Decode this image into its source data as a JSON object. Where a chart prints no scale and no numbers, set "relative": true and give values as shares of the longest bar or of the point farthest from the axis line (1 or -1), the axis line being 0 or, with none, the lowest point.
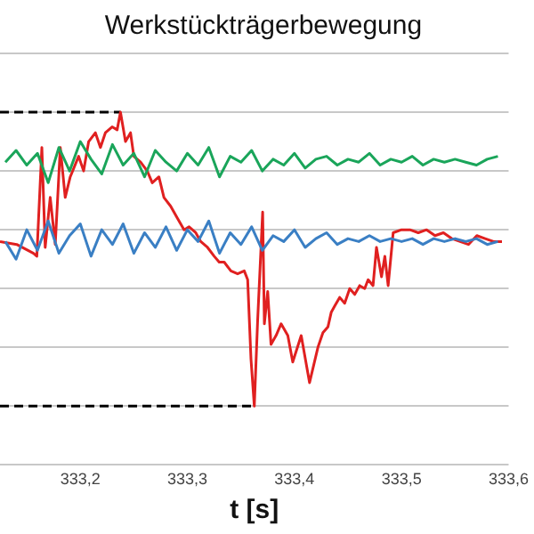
{
  "chart_data": {
    "type": "line",
    "title": "Werkstückträgerbewegung",
    "xlabel": "t [s]",
    "relative": true,
    "grid": "y",
    "legend": false,
    "marker": "none",
    "xlim": [
      333.125,
      333.6
    ],
    "xticks": [
      {
        "value": 333.2,
        "label": "333,2"
      },
      {
        "value": 333.3,
        "label": "333,3"
      },
      {
        "value": 333.4,
        "label": "333,4"
      },
      {
        "value": 333.5,
        "label": "333,5"
      },
      {
        "value": 333.6,
        "label": "333,6"
      }
    ],
    "series": [
      {
        "color": "#1aa55a",
        "x": [
          333.13,
          333.14,
          333.15,
          333.16,
          333.17,
          333.18,
          333.19,
          333.2,
          333.21,
          333.22,
          333.23,
          333.24,
          333.25,
          333.26,
          333.27,
          333.28,
          333.29,
          333.3,
          333.31,
          333.32,
          333.33,
          333.34,
          333.35,
          333.36,
          333.37,
          333.38,
          333.39,
          333.4,
          333.41,
          333.42,
          333.43,
          333.44,
          333.45,
          333.46,
          333.47,
          333.48,
          333.49,
          333.5,
          333.51,
          333.52,
          333.53,
          333.54,
          333.55,
          333.56,
          333.57,
          333.58,
          333.59
        ],
        "values": [
          0.83,
          0.87,
          0.82,
          0.86,
          0.76,
          0.88,
          0.8,
          0.9,
          0.84,
          0.79,
          0.89,
          0.82,
          0.86,
          0.78,
          0.87,
          0.83,
          0.8,
          0.86,
          0.82,
          0.88,
          0.78,
          0.85,
          0.83,
          0.87,
          0.8,
          0.84,
          0.82,
          0.86,
          0.81,
          0.84,
          0.85,
          0.82,
          0.84,
          0.83,
          0.86,
          0.82,
          0.84,
          0.83,
          0.85,
          0.82,
          0.84,
          0.83,
          0.84,
          0.83,
          0.82,
          0.84,
          0.85
        ]
      },
      {
        "color": "#3a7fc4",
        "x": [
          333.13,
          333.14,
          333.15,
          333.16,
          333.17,
          333.18,
          333.19,
          333.2,
          333.21,
          333.22,
          333.23,
          333.24,
          333.25,
          333.26,
          333.27,
          333.28,
          333.29,
          333.3,
          333.31,
          333.32,
          333.33,
          333.34,
          333.35,
          333.36,
          333.37,
          333.38,
          333.39,
          333.4,
          333.41,
          333.42,
          333.43,
          333.44,
          333.45,
          333.46,
          333.47,
          333.48,
          333.49,
          333.5,
          333.51,
          333.52,
          333.53,
          333.54,
          333.55,
          333.56,
          333.57,
          333.58,
          333.59
        ],
        "values": [
          0.56,
          0.5,
          0.6,
          0.53,
          0.63,
          0.52,
          0.58,
          0.62,
          0.51,
          0.6,
          0.55,
          0.62,
          0.52,
          0.59,
          0.54,
          0.61,
          0.53,
          0.6,
          0.56,
          0.63,
          0.52,
          0.59,
          0.55,
          0.61,
          0.53,
          0.58,
          0.56,
          0.6,
          0.54,
          0.57,
          0.59,
          0.55,
          0.57,
          0.56,
          0.58,
          0.56,
          0.57,
          0.56,
          0.57,
          0.55,
          0.57,
          0.56,
          0.57,
          0.56,
          0.57,
          0.55,
          0.56
        ]
      },
      {
        "color": "#e02020",
        "x": [
          333.125,
          333.1406,
          333.1563,
          333.1594,
          333.1641,
          333.1672,
          333.1719,
          333.1766,
          333.1813,
          333.1859,
          333.1906,
          333.1984,
          333.2031,
          333.2078,
          333.2141,
          333.2188,
          333.2234,
          333.2297,
          333.2344,
          333.2375,
          333.2422,
          333.2469,
          333.25,
          333.2563,
          333.2625,
          333.2672,
          333.2734,
          333.2781,
          333.2844,
          333.2906,
          333.2969,
          333.3016,
          333.3078,
          333.3125,
          333.3188,
          333.325,
          333.3297,
          333.3344,
          333.3406,
          333.3469,
          333.3531,
          333.3563,
          333.3594,
          333.3625,
          333.3656,
          333.3703,
          333.3719,
          333.375,
          333.3781,
          333.3828,
          333.3875,
          333.3938,
          333.3984,
          333.4063,
          333.4141,
          333.4219,
          333.4266,
          333.4313,
          333.4344,
          333.4375,
          333.4422,
          333.4469,
          333.4516,
          333.4563,
          333.4609,
          333.4656,
          333.4688,
          333.4734,
          333.4766,
          333.4813,
          333.4844,
          333.4875,
          333.4922,
          333.5,
          333.5078,
          333.5156,
          333.5234,
          333.5313,
          333.5391,
          333.5469,
          333.5547,
          333.5625,
          333.5703,
          333.5781,
          333.5859,
          333.5938
        ],
        "values": [
          0.56,
          0.55,
          0.52,
          0.51,
          0.88,
          0.54,
          0.71,
          0.55,
          0.88,
          0.71,
          0.78,
          0.85,
          0.8,
          0.9,
          0.93,
          0.88,
          0.93,
          0.95,
          0.94,
          1,
          0.9,
          0.93,
          0.85,
          0.83,
          0.8,
          0.76,
          0.78,
          0.71,
          0.68,
          0.64,
          0.6,
          0.61,
          0.59,
          0.56,
          0.54,
          0.51,
          0.49,
          0.49,
          0.46,
          0.45,
          0.46,
          0.43,
          0.16,
          0,
          0.29,
          0.66,
          0.28,
          0.39,
          0.21,
          0.24,
          0.28,
          0.24,
          0.15,
          0.24,
          0.08,
          0.2,
          0.25,
          0.27,
          0.32,
          0.34,
          0.37,
          0.35,
          0.4,
          0.38,
          0.41,
          0.4,
          0.43,
          0.41,
          0.54,
          0.44,
          0.51,
          0.41,
          0.59,
          0.6,
          0.6,
          0.59,
          0.6,
          0.58,
          0.59,
          0.57,
          0.56,
          0.55,
          0.58,
          0.57,
          0.56,
          0.56
        ]
      },
      {
        "color": "#000000",
        "line_style": "dashed",
        "x": [
          333.125,
          333.2375
        ],
        "values": [
          1,
          1
        ]
      },
      {
        "color": "#000000",
        "line_style": "dashed",
        "x": [
          333.125,
          333.3625
        ],
        "values": [
          0,
          0
        ]
      }
    ]
  }
}
